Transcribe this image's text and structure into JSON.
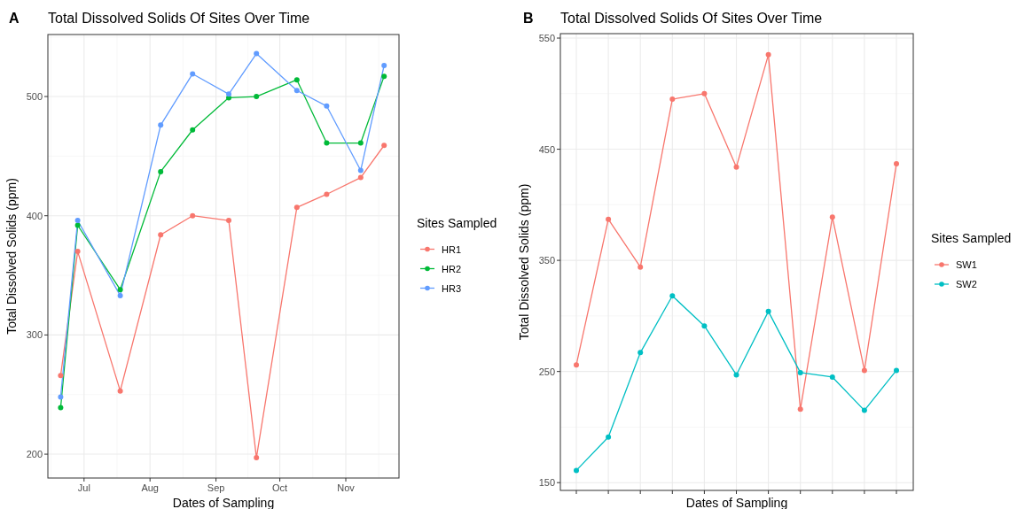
{
  "chart_data": [
    {
      "type": "line",
      "title": "Total Dissolved Solids Of Sites Over Time",
      "xlabel": "Dates of Sampling",
      "ylabel": "Total Dissolved Solids (ppm)",
      "legend_title": "Sites Sampled",
      "annotations": [
        "A"
      ],
      "x": [
        "--06-20",
        "--06-28",
        "--07-18",
        "--08-06",
        "--08-21",
        "--09-07",
        "--09-20",
        "--10-09",
        "--10-23",
        "--11-08",
        "--11-19"
      ],
      "series": [
        {
          "name": "HR1",
          "color": "#f8766d",
          "values": [
            266,
            370,
            253,
            384,
            400,
            396,
            197,
            407,
            418,
            432,
            459
          ]
        },
        {
          "name": "HR2",
          "color": "#00ba38",
          "values": [
            239,
            392,
            338,
            437,
            472,
            499,
            500,
            514,
            461,
            461,
            517
          ]
        },
        {
          "name": "HR3",
          "color": "#619cff",
          "values": [
            248,
            396,
            333,
            476,
            519,
            502,
            536,
            505,
            492,
            438,
            526
          ]
        }
      ],
      "xlim": [
        "--06-14",
        "--11-26"
      ],
      "xticks": [
        {
          "value": "--07-01",
          "label": "Jul"
        },
        {
          "value": "--08-01",
          "label": "Aug"
        },
        {
          "value": "--09-01",
          "label": "Sep"
        },
        {
          "value": "--10-01",
          "label": "Oct"
        },
        {
          "value": "--11-01",
          "label": "Nov"
        }
      ],
      "ylim": [
        180,
        552
      ],
      "yticks": [
        200,
        300,
        400,
        500
      ],
      "grid": true,
      "legend": "right",
      "marker": "circle",
      "line_style": "solid"
    },
    {
      "type": "line",
      "title": "Total Dissolved Solids Of Sites Over Time",
      "xlabel": "Dates of Sampling",
      "ylabel": "Total Dissolved Solids (ppm)",
      "legend_title": "Sites Sampled",
      "annotations": [
        "B"
      ],
      "categories": [
        null,
        null,
        null,
        null,
        null,
        null,
        null,
        null,
        null,
        null,
        null
      ],
      "series": [
        {
          "name": "SW1",
          "color": "#f8766d",
          "values": [
            256,
            387,
            344,
            495,
            500,
            434,
            535,
            216,
            389,
            251,
            437
          ]
        },
        {
          "name": "SW2",
          "color": "#00bfc4",
          "values": [
            161,
            191,
            267,
            318,
            291,
            247,
            304,
            249,
            245,
            215,
            251
          ]
        }
      ],
      "ylim": [
        143,
        554
      ],
      "yticks": [
        150,
        250,
        350,
        450,
        550
      ],
      "grid": true,
      "legend": "right",
      "marker": "circle",
      "line_style": "solid"
    }
  ]
}
